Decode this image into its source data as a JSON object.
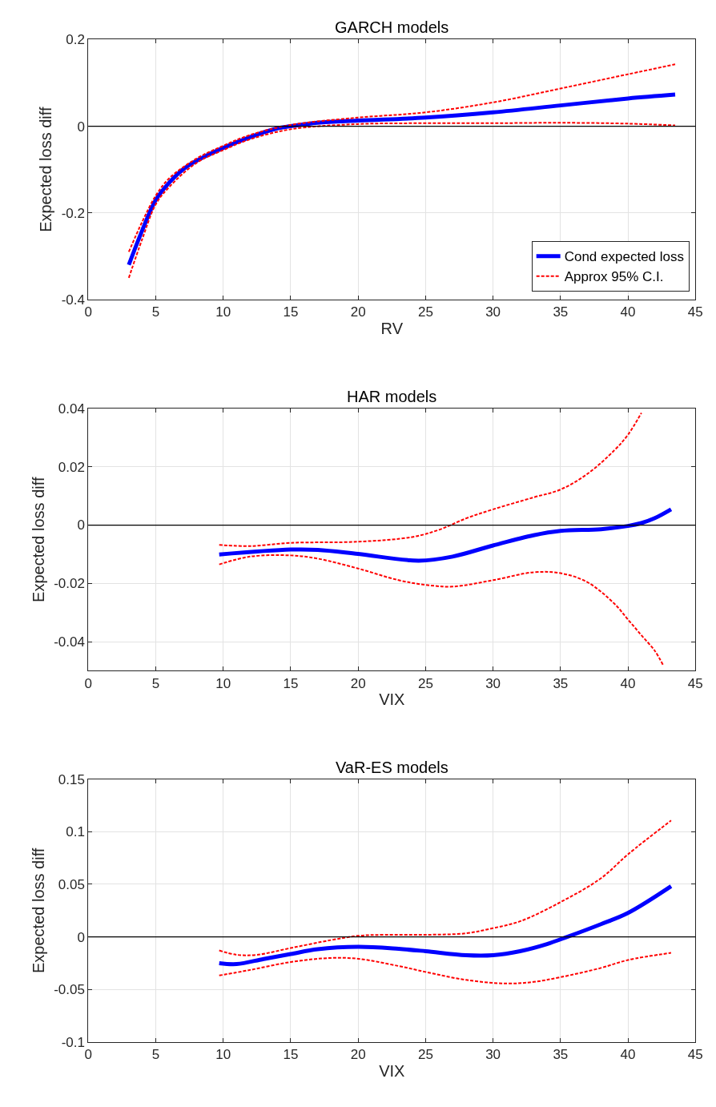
{
  "chart_data": [
    {
      "type": "line",
      "title": "GARCH models",
      "xlabel": "RV",
      "ylabel": "Expected loss diff",
      "xlim": [
        0,
        45
      ],
      "xticks": [
        0,
        5,
        10,
        15,
        20,
        25,
        30,
        35,
        40,
        45
      ],
      "ylim": [
        -0.4,
        0.2
      ],
      "yticks": [
        -0.4,
        -0.2,
        0,
        0.2
      ],
      "grid": true,
      "legend": "bottom right",
      "ref_lines": [
        {
          "axis": "y",
          "value": 0,
          "color": "#000000"
        }
      ],
      "series": [
        {
          "name": "Cond expected loss",
          "color": "#0000ff",
          "line_style": "solid",
          "x": [
            3,
            4,
            5,
            6,
            7,
            8,
            10,
            12,
            14,
            15,
            17,
            20,
            25,
            30,
            35,
            40,
            43.5
          ],
          "values": [
            -0.32,
            -0.24,
            -0.17,
            -0.13,
            -0.1,
            -0.08,
            -0.05,
            -0.025,
            -0.005,
            0,
            0.008,
            0.013,
            0.02,
            0.032,
            0.048,
            0.064,
            0.073
          ]
        },
        {
          "name": "Approx 95% C.I.",
          "color": "#ff0000",
          "line_style": "dashed",
          "x": [
            3,
            4,
            5,
            6,
            8,
            10,
            12,
            15,
            20,
            25,
            30,
            35,
            40,
            43.5
          ],
          "values": [
            -0.29,
            -0.22,
            -0.16,
            -0.12,
            -0.075,
            -0.045,
            -0.02,
            0.003,
            0.02,
            0.032,
            0.055,
            0.087,
            0.12,
            0.143
          ]
        },
        {
          "color": "#ff0000",
          "line_style": "dashed",
          "x": [
            3,
            4,
            5,
            6,
            8,
            10,
            12,
            15,
            20,
            25,
            30,
            35,
            40,
            43.5
          ],
          "values": [
            -0.35,
            -0.26,
            -0.18,
            -0.14,
            -0.085,
            -0.055,
            -0.03,
            -0.007,
            0.005,
            0.007,
            0.007,
            0.008,
            0.006,
            0.002
          ]
        }
      ]
    },
    {
      "type": "line",
      "title": "HAR models",
      "xlabel": "VIX",
      "ylabel": "Expected loss diff",
      "xlim": [
        0,
        45
      ],
      "xticks": [
        0,
        5,
        10,
        15,
        20,
        25,
        30,
        35,
        40,
        45
      ],
      "ylim": [
        -0.05,
        0.04
      ],
      "yticks": [
        -0.04,
        -0.02,
        0,
        0.02,
        0.04
      ],
      "grid": true,
      "ref_lines": [
        {
          "axis": "y",
          "value": 0,
          "color": "#000000"
        }
      ],
      "series": [
        {
          "color": "#0000ff",
          "line_style": "solid",
          "x": [
            9.7,
            15,
            17,
            20,
            24.5,
            27,
            30,
            33,
            35,
            38,
            40,
            41,
            42,
            43.2
          ],
          "values": [
            -0.0101,
            -0.0084,
            -0.0085,
            -0.0099,
            -0.0122,
            -0.0108,
            -0.007,
            -0.0035,
            -0.002,
            -0.0014,
            -0.0003,
            0.0007,
            0.0024,
            0.0054
          ]
        },
        {
          "color": "#ff0000",
          "line_style": "dashed",
          "x": [
            9.7,
            12,
            15,
            20,
            24,
            26,
            28,
            30,
            33,
            35,
            37,
            39,
            40,
            41
          ],
          "values": [
            -0.0068,
            -0.0072,
            -0.0061,
            -0.0057,
            -0.0041,
            -0.0016,
            0.0023,
            0.0054,
            0.0095,
            0.0122,
            0.0176,
            0.0257,
            0.031,
            0.0385
          ]
        },
        {
          "color": "#ff0000",
          "line_style": "dashed",
          "x": [
            9.7,
            12,
            15,
            17,
            20,
            23,
            25,
            27,
            30,
            33,
            35,
            37,
            39,
            40,
            41,
            42,
            42.6
          ],
          "values": [
            -0.0135,
            -0.0108,
            -0.0104,
            -0.0115,
            -0.0149,
            -0.0189,
            -0.0205,
            -0.0211,
            -0.0189,
            -0.0162,
            -0.0165,
            -0.0196,
            -0.027,
            -0.0324,
            -0.0378,
            -0.0432,
            -0.048
          ]
        }
      ]
    },
    {
      "type": "line",
      "title": "VaR-ES models",
      "xlabel": "VIX",
      "ylabel": "Expected loss diff",
      "xlim": [
        0,
        45
      ],
      "xticks": [
        0,
        5,
        10,
        15,
        20,
        25,
        30,
        35,
        40,
        45
      ],
      "ylim": [
        -0.1,
        0.15
      ],
      "yticks": [
        -0.1,
        -0.05,
        0,
        0.05,
        0.1,
        0.15
      ],
      "grid": true,
      "ref_lines": [
        {
          "axis": "y",
          "value": 0,
          "color": "#000000"
        }
      ],
      "series": [
        {
          "color": "#0000ff",
          "line_style": "solid",
          "x": [
            9.7,
            11,
            13,
            15,
            17,
            20,
            23,
            25,
            28,
            30,
            32,
            34,
            35.5,
            38,
            40,
            43.2
          ],
          "values": [
            -0.025,
            -0.0258,
            -0.021,
            -0.0163,
            -0.0117,
            -0.0095,
            -0.0114,
            -0.0136,
            -0.0174,
            -0.0174,
            -0.0136,
            -0.0068,
            0,
            0.0121,
            0.0227,
            0.0481
          ]
        },
        {
          "color": "#ff0000",
          "line_style": "dashed",
          "x": [
            9.7,
            11,
            12.5,
            15,
            18,
            20,
            22,
            25,
            28,
            30,
            32,
            35,
            38,
            40,
            43.2
          ],
          "values": [
            -0.0129,
            -0.017,
            -0.017,
            -0.0106,
            -0.003,
            0.001,
            0.002,
            0.002,
            0.0034,
            0.0083,
            0.0148,
            0.033,
            0.0557,
            0.0784,
            0.1106
          ]
        },
        {
          "color": "#ff0000",
          "line_style": "dashed",
          "x": [
            9.7,
            12,
            15,
            18,
            20,
            23,
            25,
            28,
            31,
            33,
            35,
            38,
            40,
            43.2
          ],
          "values": [
            -0.0367,
            -0.0314,
            -0.0239,
            -0.02,
            -0.0208,
            -0.0277,
            -0.0333,
            -0.0409,
            -0.0443,
            -0.0428,
            -0.0383,
            -0.0295,
            -0.022,
            -0.0152
          ]
        }
      ]
    }
  ]
}
